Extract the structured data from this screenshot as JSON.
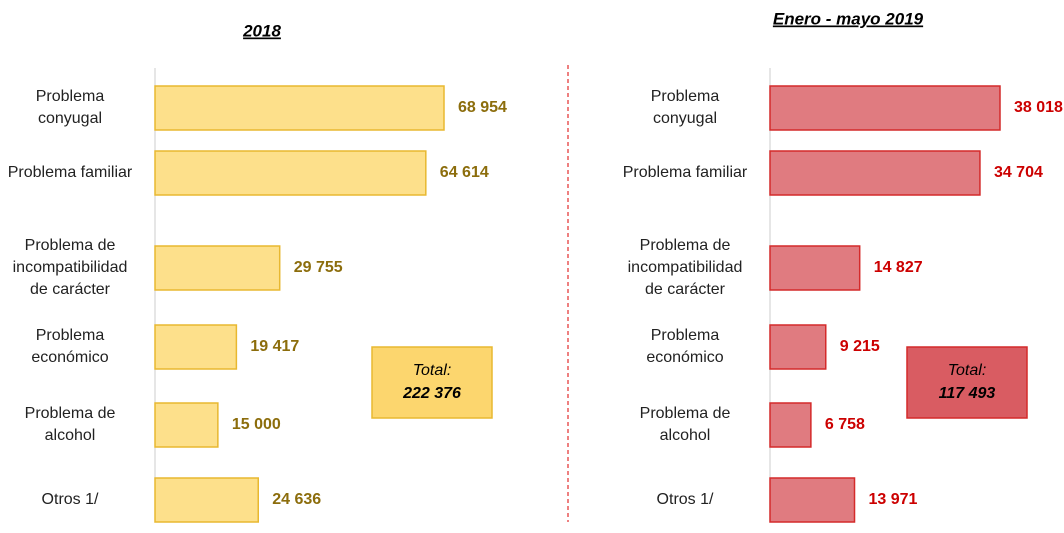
{
  "chart_data": [
    {
      "type": "bar",
      "title": "2018",
      "categories": [
        "Problema conyugal",
        "Problema familiar",
        "Problema de incompatibilidad de carácter",
        "Problema económico",
        "Problema de alcohol",
        "Otros 1/"
      ],
      "values": [
        68954,
        64614,
        29755,
        19417,
        15000,
        24636
      ],
      "value_labels": [
        "68 954",
        "64 614",
        "29 755",
        "19 417",
        "15 000",
        "24 636"
      ],
      "color": "#fde08b",
      "edge_color": "#e8b830",
      "label_color": "#8c6d0c",
      "total_title": "Total:",
      "total": "222 376",
      "total_color": "#fcd66e"
    },
    {
      "type": "bar",
      "title": "Enero - mayo 2019",
      "categories": [
        "Problema conyugal",
        "Problema familiar",
        "Problema de incompatibilidad de carácter",
        "Problema económico",
        "Problema de alcohol",
        "Otros 1/"
      ],
      "values": [
        38018,
        34704,
        14827,
        9215,
        6758,
        13971
      ],
      "value_labels": [
        "38 018",
        "34 704",
        "14 827",
        "9 215",
        "6 758",
        "13 971"
      ],
      "color": "#e07b80",
      "edge_color": "#d42a2a",
      "label_color": "#cc0000",
      "total_title": "Total:",
      "total": "117 493",
      "total_color": "#d95c62"
    }
  ]
}
